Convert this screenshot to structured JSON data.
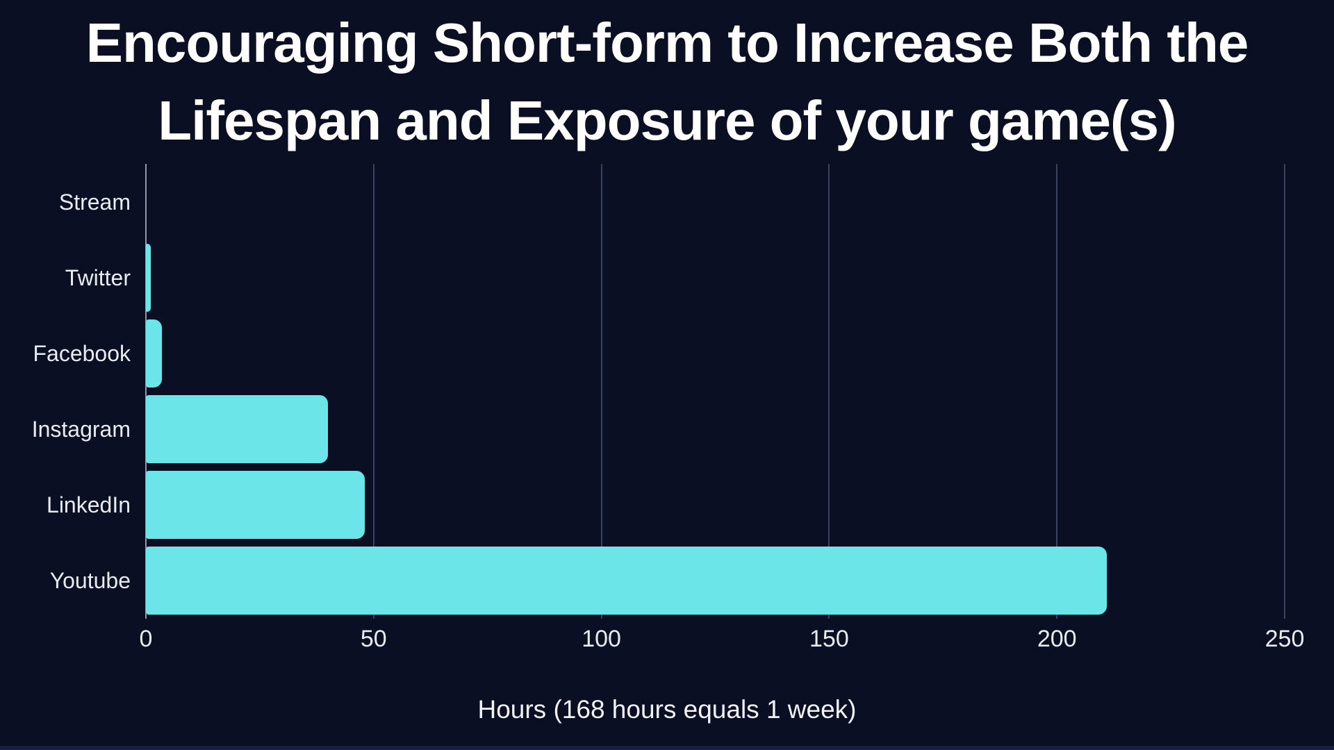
{
  "title": {
    "line1": "Encouraging Short-form to Increase Both the",
    "line2": "Lifespan and Exposure of your game(s)"
  },
  "chart_data": {
    "type": "bar",
    "orientation": "horizontal",
    "title": "Encouraging Short-form to Increase Both the Lifespan and Exposure of your game(s)",
    "categories": [
      "Stream",
      "Twitter",
      "Facebook",
      "Instagram",
      "LinkedIn",
      "Youtube"
    ],
    "values": [
      0,
      1,
      3.5,
      40,
      48,
      211
    ],
    "xlabel": "Hours (168 hours equals 1 week)",
    "ylabel": "",
    "xticks": [
      0,
      50,
      100,
      150,
      200,
      250
    ],
    "xlim": [
      0,
      250
    ],
    "grid": "vertical-gridlines-on",
    "legend": "none"
  },
  "colors": {
    "background": "#0a0f24",
    "bar": "#6ce5e9",
    "gridline": "#3a4262",
    "axis_line": "#9298a8",
    "title_text": "#ffffff",
    "label_text": "#e9ebf0"
  }
}
